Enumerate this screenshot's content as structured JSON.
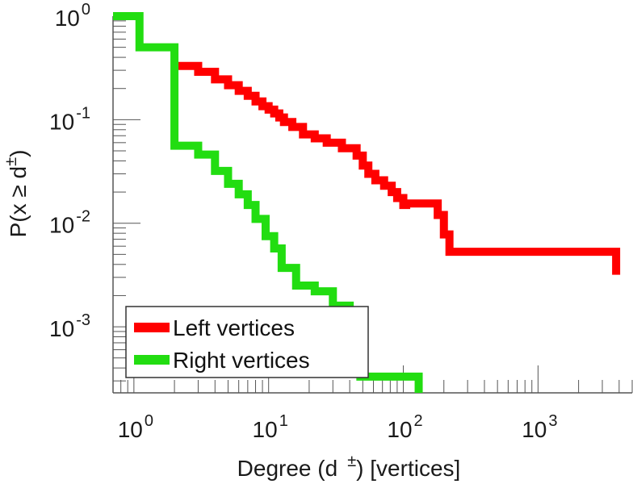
{
  "chart_data": {
    "type": "line",
    "xscale": "log",
    "yscale": "log",
    "xlim": [
      0.7,
      5000
    ],
    "ylim": [
      0.00023,
      1.0
    ],
    "xlabel_main": "Degree (d",
    "xlabel_sup": "±",
    "xlabel_suffix": ") [vertices]",
    "ylabel_main": "P(x ≥ d",
    "ylabel_sup": "±",
    "ylabel_suffix": ")",
    "x_ticks": [
      {
        "value": 1,
        "base": "10",
        "exp": "0"
      },
      {
        "value": 10,
        "base": "10",
        "exp": "1"
      },
      {
        "value": 100,
        "base": "10",
        "exp": "2"
      },
      {
        "value": 1000,
        "base": "10",
        "exp": "3"
      }
    ],
    "y_ticks": [
      {
        "value": 1,
        "base": "10",
        "exp": "0"
      },
      {
        "value": 0.1,
        "base": "10",
        "exp": "-1"
      },
      {
        "value": 0.01,
        "base": "10",
        "exp": "-2"
      },
      {
        "value": 0.001,
        "base": "10",
        "exp": "-3"
      }
    ],
    "legend_position": "bottom-left",
    "series": [
      {
        "name": "Left vertices",
        "color": "#ff0000",
        "x": [
          2,
          3,
          4,
          5,
          6,
          7,
          8,
          9,
          10,
          11,
          12,
          13,
          15,
          18,
          22,
          27,
          35,
          45,
          50,
          55,
          62,
          72,
          82,
          90,
          100,
          105,
          180,
          200,
          220,
          3800
        ],
        "y": [
          0.33,
          0.29,
          0.245,
          0.215,
          0.19,
          0.17,
          0.15,
          0.135,
          0.125,
          0.115,
          0.105,
          0.095,
          0.085,
          0.072,
          0.066,
          0.06,
          0.053,
          0.045,
          0.036,
          0.03,
          0.026,
          0.023,
          0.02,
          0.0175,
          0.015,
          0.0155,
          0.012,
          0.0078,
          0.0053,
          0.0038
        ]
      },
      {
        "name": "Right vertices",
        "color": "#22dd11",
        "x": [
          0.7,
          1.1,
          2.0,
          3.0,
          4.0,
          5.0,
          6.0,
          7.0,
          8.0,
          9.5,
          11.0,
          12.5,
          16.0,
          22.0,
          30.0,
          40.0,
          48.0,
          130.0
        ],
        "y": [
          1.0,
          0.5,
          0.056,
          0.046,
          0.032,
          0.024,
          0.019,
          0.015,
          0.011,
          0.0075,
          0.0057,
          0.0037,
          0.0025,
          0.0022,
          0.0016,
          0.00125,
          0.00033,
          0.00025
        ]
      }
    ]
  }
}
